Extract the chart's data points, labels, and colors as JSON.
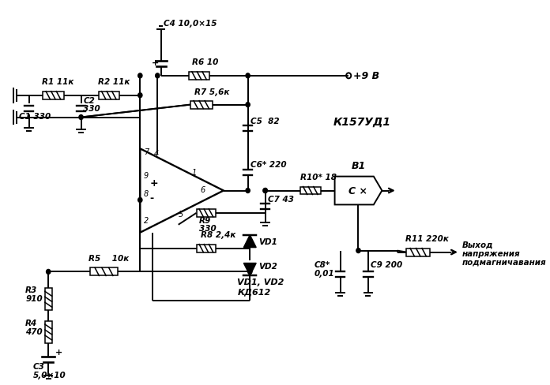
{
  "bg_color": "#ffffff",
  "line_color": "#000000",
  "lw": 1.4,
  "lw_thin": 1.1,
  "fig_width": 6.96,
  "fig_height": 4.88,
  "labels": {
    "R1": "R1 11к",
    "R2": "R2 11к",
    "C1": "C1 330",
    "C2": "C2",
    "C2b": "330",
    "C4": "C4 10,0×15",
    "R6": "R6 10",
    "R7": "R7 5,6к",
    "C5": "C5  82",
    "C6": "C6* 220",
    "C7": "C7 43",
    "R9": "R9",
    "R9b": "330",
    "R8": "R8 2,4к",
    "R5": "R5    10к",
    "R3": "R3",
    "R3b": "910",
    "R4": "R4",
    "R4b": "470",
    "C3": "C3",
    "C3b": "5,0×10",
    "VD1": "VD1",
    "VD2": "VD2",
    "VD_note": "VD1, VD2",
    "VD_note2": "КД612",
    "R10": "R10* 18",
    "B1": "B1",
    "K157": "К157УД1",
    "supply": "+9 В",
    "R11": "R11 220к",
    "C8": "C8*",
    "C8b": "0,01",
    "C9": "C9 200",
    "output": "Выход",
    "output2": "напряжения",
    "output3": "подмагничавания"
  }
}
